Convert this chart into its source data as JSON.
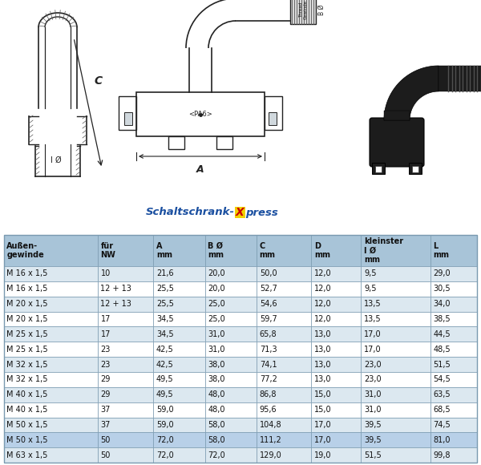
{
  "table_headers": [
    "Außen-\ngewinde",
    "für\nNW",
    "A\nmm",
    "B Ø\nmm",
    "C\nmm",
    "D\nmm",
    "kleinster\nI Ø\nmm",
    "L\nmm"
  ],
  "table_data": [
    [
      "M 16 x 1,5",
      "10",
      "21,6",
      "20,0",
      "50,0",
      "12,0",
      "9,5",
      "29,0"
    ],
    [
      "M 16 x 1,5",
      "12 + 13",
      "25,5",
      "20,0",
      "52,7",
      "12,0",
      "9,5",
      "30,5"
    ],
    [
      "M 20 x 1,5",
      "12 + 13",
      "25,5",
      "25,0",
      "54,6",
      "12,0",
      "13,5",
      "34,0"
    ],
    [
      "M 20 x 1,5",
      "17",
      "34,5",
      "25,0",
      "59,7",
      "12,0",
      "13,5",
      "38,5"
    ],
    [
      "M 25 x 1,5",
      "17",
      "34,5",
      "31,0",
      "65,8",
      "13,0",
      "17,0",
      "44,5"
    ],
    [
      "M 25 x 1,5",
      "23",
      "42,5",
      "31,0",
      "71,3",
      "13,0",
      "17,0",
      "48,5"
    ],
    [
      "M 32 x 1,5",
      "23",
      "42,5",
      "38,0",
      "74,1",
      "13,0",
      "23,0",
      "51,5"
    ],
    [
      "M 32 x 1,5",
      "29",
      "49,5",
      "38,0",
      "77,2",
      "13,0",
      "23,0",
      "54,5"
    ],
    [
      "M 40 x 1,5",
      "29",
      "49,5",
      "48,0",
      "86,8",
      "15,0",
      "31,0",
      "63,5"
    ],
    [
      "M 40 x 1,5",
      "37",
      "59,0",
      "48,0",
      "95,6",
      "15,0",
      "31,0",
      "68,5"
    ],
    [
      "M 50 x 1,5",
      "37",
      "59,0",
      "58,0",
      "104,8",
      "17,0",
      "39,5",
      "74,5"
    ],
    [
      "M 50 x 1,5",
      "50",
      "72,0",
      "58,0",
      "111,2",
      "17,0",
      "39,5",
      "81,0"
    ],
    [
      "M 63 x 1,5",
      "50",
      "72,0",
      "72,0",
      "129,0",
      "19,0",
      "51,5",
      "99,8"
    ]
  ],
  "highlight_row": 11,
  "bg_color_light": "#dce8f0",
  "bg_color_white": "#ffffff",
  "header_bg": "#a8c4d8",
  "table_text_color": "#111111",
  "header_text_color": "#111111",
  "brand_color_main": "#1a4fa0",
  "brand_color_x_bg": "#f0d000",
  "brand_color_x_text": "#cc0000",
  "diagram_bg": "#f0f0f0",
  "line_color": "#222222",
  "border_color": "#7a9ab0"
}
